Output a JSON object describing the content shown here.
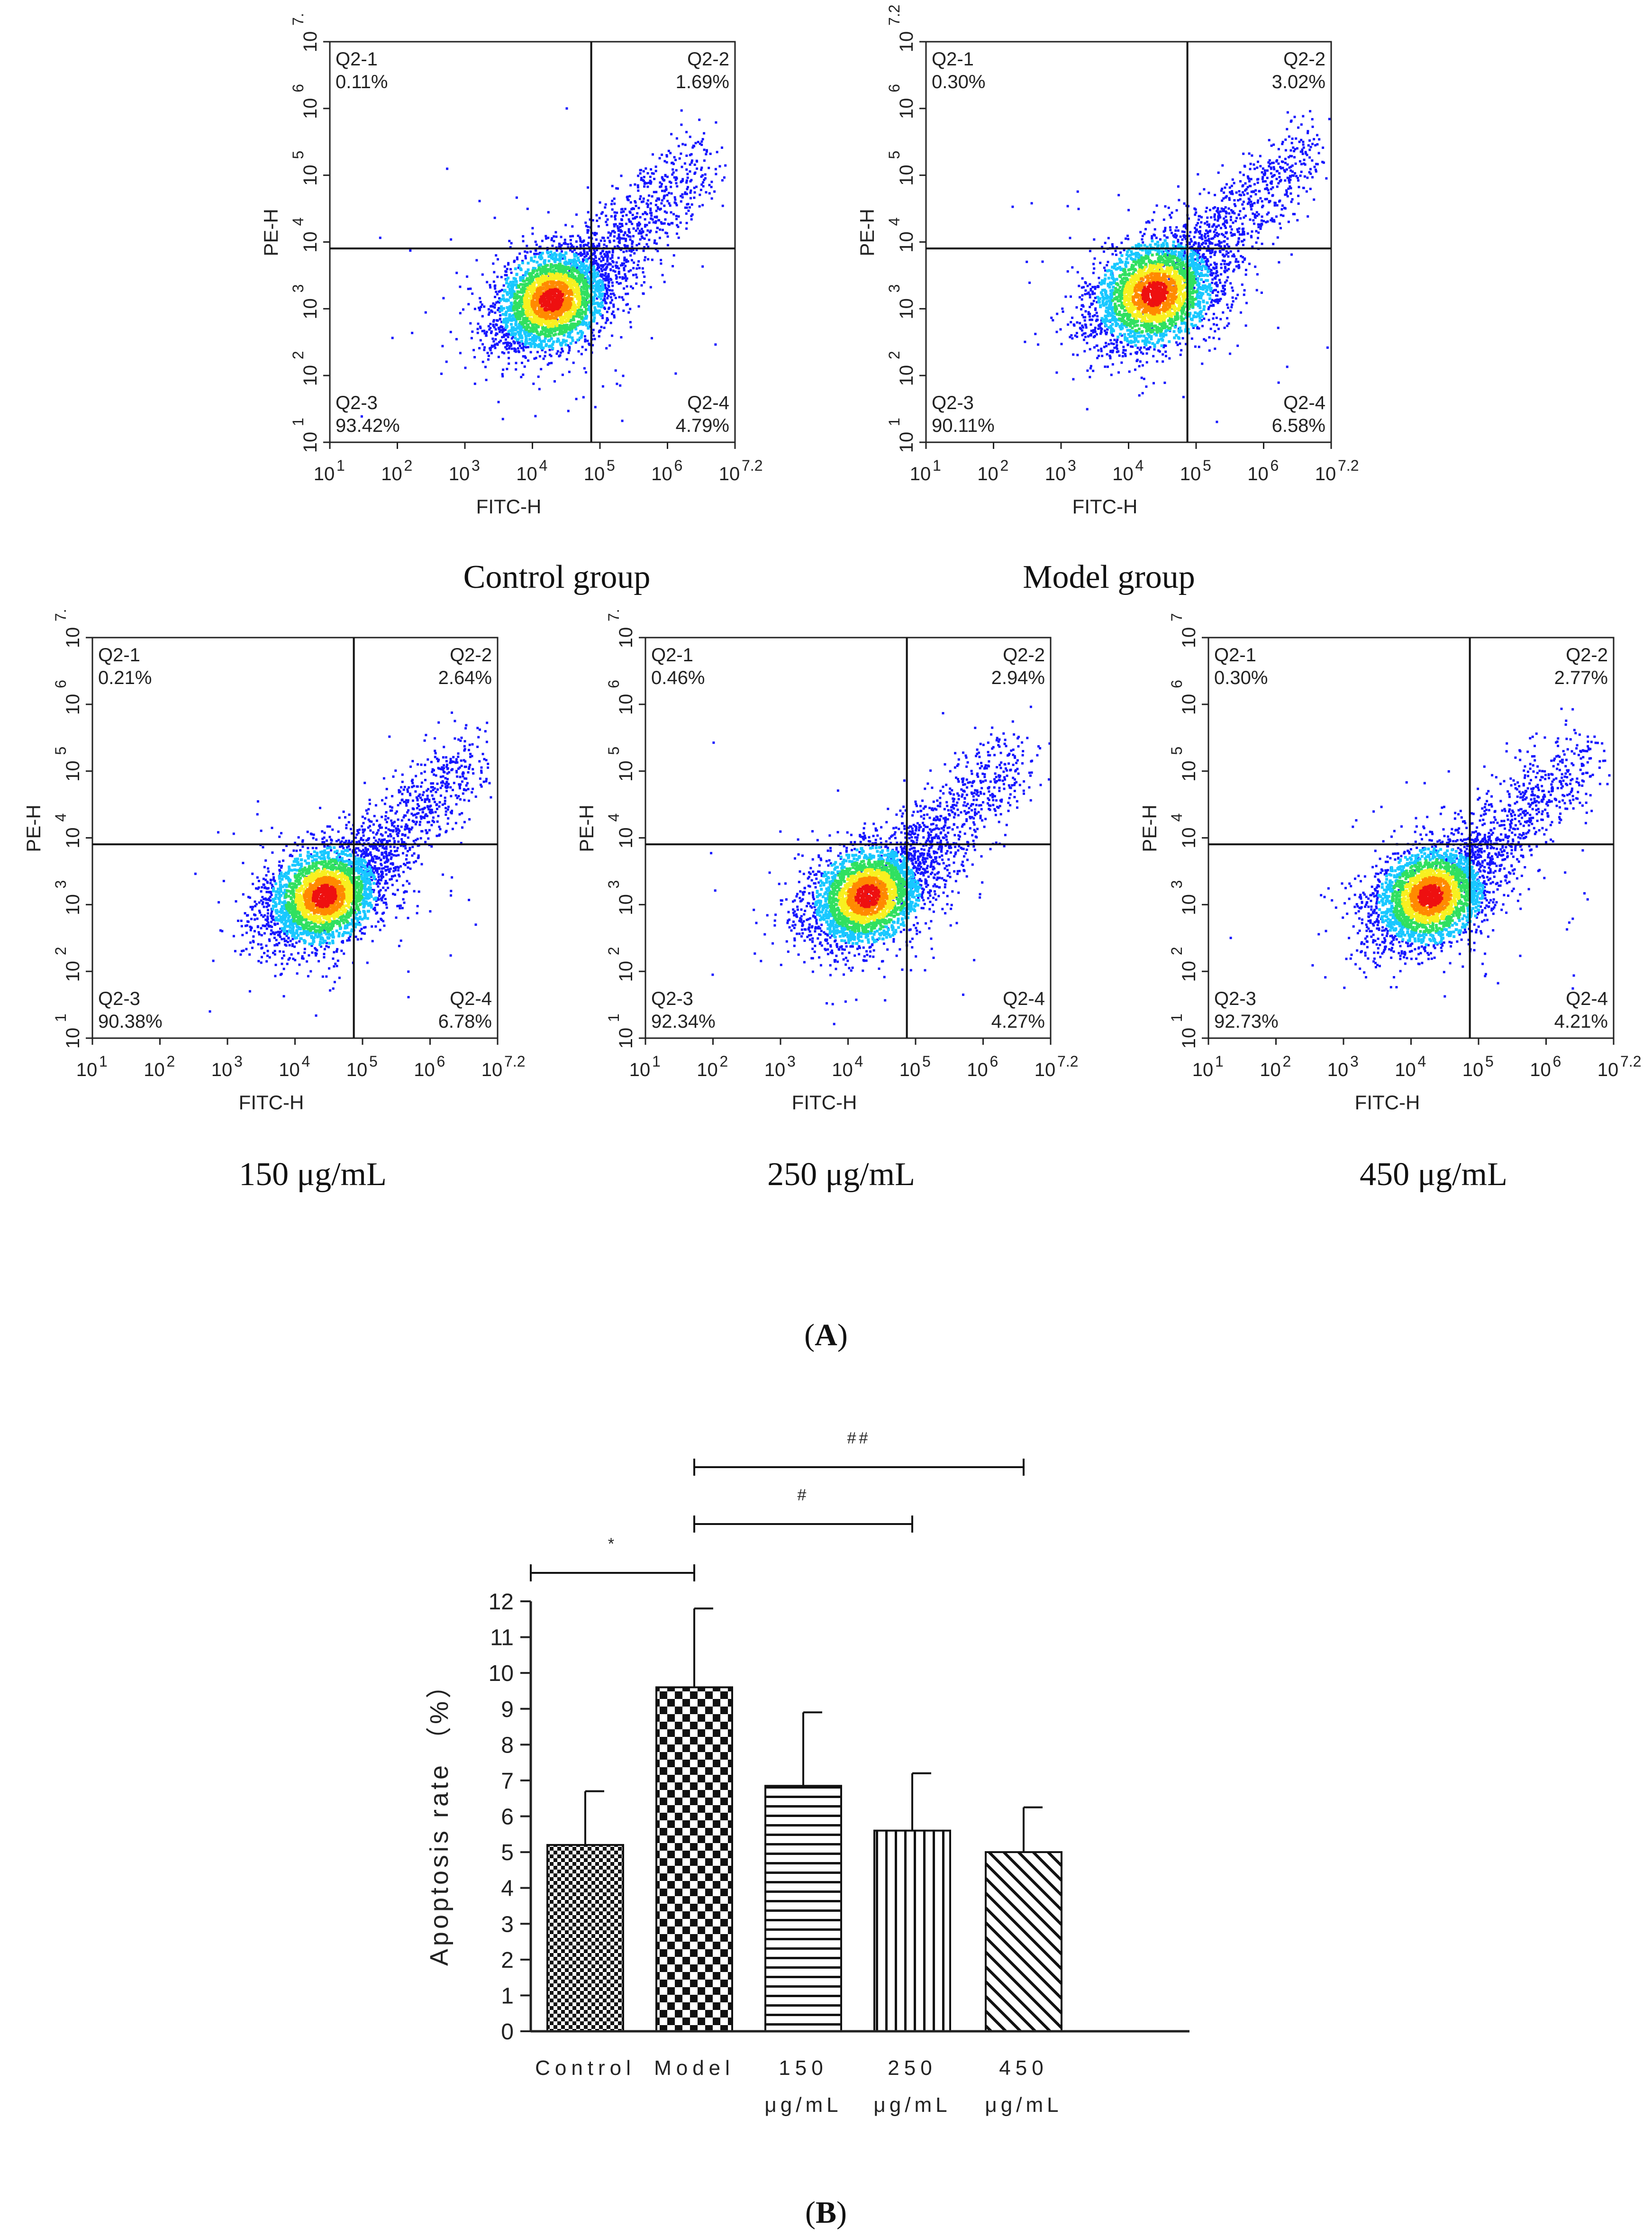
{
  "figure": {
    "panel_a_label_open": "(",
    "panel_a_label_letter": "A",
    "panel_a_label_close": ")",
    "panel_b_label_open": "(",
    "panel_b_label_letter": "B",
    "panel_b_label_close": ")"
  },
  "colors": {
    "dot_blue": "#1515ff",
    "dot_cyan": "#18c8ff",
    "dot_green": "#30e060",
    "dot_yellow": "#f8f020",
    "dot_orange": "#ff8a00",
    "dot_red": "#ee1010",
    "axis": "#222222"
  },
  "chart_data": [
    {
      "type": "scatter",
      "kind": "flow-cytometry",
      "caption": "Control group",
      "xlabel": "FITC-H",
      "ylabel": "PE-H",
      "xticks": [
        {
          "base": "10",
          "exp": "1"
        },
        {
          "base": "10",
          "exp": "2"
        },
        {
          "base": "10",
          "exp": "3"
        },
        {
          "base": "10",
          "exp": "4"
        },
        {
          "base": "10",
          "exp": "5"
        },
        {
          "base": "10",
          "exp": "6"
        },
        {
          "base": "10",
          "exp": "7.2"
        }
      ],
      "yticks": [
        {
          "base": "10",
          "exp": "1"
        },
        {
          "base": "10",
          "exp": "2"
        },
        {
          "base": "10",
          "exp": "3"
        },
        {
          "base": "10",
          "exp": "4"
        },
        {
          "base": "10",
          "exp": "5"
        },
        {
          "base": "10",
          "exp": "6"
        },
        {
          "base": "10",
          "exp": "7."
        }
      ],
      "xlim_log10": [
        1,
        7.2
      ],
      "ylim_log10": [
        1,
        7.2
      ],
      "gate_x_log10": 5.0,
      "gate_y_log10": 4.0,
      "cluster_center_log10": [
        4.4,
        3.2
      ],
      "spread": 0.55,
      "quadrants": [
        {
          "name": "Q2-1",
          "value": "0.11%"
        },
        {
          "name": "Q2-2",
          "value": "1.69%"
        },
        {
          "name": "Q2-3",
          "value": "93.42%"
        },
        {
          "name": "Q2-4",
          "value": "4.79%"
        }
      ]
    },
    {
      "type": "scatter",
      "kind": "flow-cytometry",
      "caption": "Model group",
      "xlabel": "FITC-H",
      "ylabel": "PE-H",
      "xticks": [
        {
          "base": "10",
          "exp": "1"
        },
        {
          "base": "10",
          "exp": "2"
        },
        {
          "base": "10",
          "exp": "3"
        },
        {
          "base": "10",
          "exp": "4"
        },
        {
          "base": "10",
          "exp": "5"
        },
        {
          "base": "10",
          "exp": "6"
        },
        {
          "base": "10",
          "exp": "7.2"
        }
      ],
      "yticks": [
        {
          "base": "10",
          "exp": "1"
        },
        {
          "base": "10",
          "exp": "2"
        },
        {
          "base": "10",
          "exp": "3"
        },
        {
          "base": "10",
          "exp": "4"
        },
        {
          "base": "10",
          "exp": "5"
        },
        {
          "base": "10",
          "exp": "6"
        },
        {
          "base": "10",
          "exp": "7.2"
        }
      ],
      "xlim_log10": [
        1,
        7.2
      ],
      "ylim_log10": [
        1,
        7.2
      ],
      "gate_x_log10": 5.0,
      "gate_y_log10": 4.0,
      "cluster_center_log10": [
        4.5,
        3.3
      ],
      "spread": 0.6,
      "quadrants": [
        {
          "name": "Q2-1",
          "value": "0.30%"
        },
        {
          "name": "Q2-2",
          "value": "3.02%"
        },
        {
          "name": "Q2-3",
          "value": "90.11%"
        },
        {
          "name": "Q2-4",
          "value": "6.58%"
        }
      ]
    },
    {
      "type": "scatter",
      "kind": "flow-cytometry",
      "caption": "150 μg/mL",
      "xlabel": "FITC-H",
      "ylabel": "PE-H",
      "xticks": [
        {
          "base": "10",
          "exp": "1"
        },
        {
          "base": "10",
          "exp": "2"
        },
        {
          "base": "10",
          "exp": "3"
        },
        {
          "base": "10",
          "exp": "4"
        },
        {
          "base": "10",
          "exp": "5"
        },
        {
          "base": "10",
          "exp": "6"
        },
        {
          "base": "10",
          "exp": "7.2"
        }
      ],
      "yticks": [
        {
          "base": "10",
          "exp": "1"
        },
        {
          "base": "10",
          "exp": "2"
        },
        {
          "base": "10",
          "exp": "3"
        },
        {
          "base": "10",
          "exp": "4"
        },
        {
          "base": "10",
          "exp": "5"
        },
        {
          "base": "10",
          "exp": "6"
        },
        {
          "base": "10",
          "exp": "7."
        }
      ],
      "xlim_log10": [
        1,
        7.2
      ],
      "ylim_log10": [
        1,
        7.2
      ],
      "gate_x_log10": 5.0,
      "gate_y_log10": 4.0,
      "cluster_center_log10": [
        4.55,
        3.2
      ],
      "spread": 0.55,
      "quadrants": [
        {
          "name": "Q2-1",
          "value": "0.21%"
        },
        {
          "name": "Q2-2",
          "value": "2.64%"
        },
        {
          "name": "Q2-3",
          "value": "90.38%"
        },
        {
          "name": "Q2-4",
          "value": "6.78%"
        }
      ]
    },
    {
      "type": "scatter",
      "kind": "flow-cytometry",
      "caption": "250 μg/mL",
      "xlabel": "FITC-H",
      "ylabel": "PE-H",
      "xticks": [
        {
          "base": "10",
          "exp": "1"
        },
        {
          "base": "10",
          "exp": "2"
        },
        {
          "base": "10",
          "exp": "3"
        },
        {
          "base": "10",
          "exp": "4"
        },
        {
          "base": "10",
          "exp": "5"
        },
        {
          "base": "10",
          "exp": "6"
        },
        {
          "base": "10",
          "exp": "7.2"
        }
      ],
      "yticks": [
        {
          "base": "10",
          "exp": "1"
        },
        {
          "base": "10",
          "exp": "2"
        },
        {
          "base": "10",
          "exp": "3"
        },
        {
          "base": "10",
          "exp": "4"
        },
        {
          "base": "10",
          "exp": "5"
        },
        {
          "base": "10",
          "exp": "6"
        },
        {
          "base": "10",
          "exp": "7."
        }
      ],
      "xlim_log10": [
        1,
        7.2
      ],
      "ylim_log10": [
        1,
        7.2
      ],
      "gate_x_log10": 5.0,
      "gate_y_log10": 4.0,
      "cluster_center_log10": [
        4.4,
        3.2
      ],
      "spread": 0.55,
      "quadrants": [
        {
          "name": "Q2-1",
          "value": "0.46%"
        },
        {
          "name": "Q2-2",
          "value": "2.94%"
        },
        {
          "name": "Q2-3",
          "value": "92.34%"
        },
        {
          "name": "Q2-4",
          "value": "4.27%"
        }
      ]
    },
    {
      "type": "scatter",
      "kind": "flow-cytometry",
      "caption": "450 μg/mL",
      "xlabel": "FITC-H",
      "ylabel": "PE-H",
      "xticks": [
        {
          "base": "10",
          "exp": "1"
        },
        {
          "base": "10",
          "exp": "2"
        },
        {
          "base": "10",
          "exp": "3"
        },
        {
          "base": "10",
          "exp": "4"
        },
        {
          "base": "10",
          "exp": "5"
        },
        {
          "base": "10",
          "exp": "6"
        },
        {
          "base": "10",
          "exp": "7.2"
        }
      ],
      "yticks": [
        {
          "base": "10",
          "exp": "1"
        },
        {
          "base": "10",
          "exp": "2"
        },
        {
          "base": "10",
          "exp": "3"
        },
        {
          "base": "10",
          "exp": "4"
        },
        {
          "base": "10",
          "exp": "5"
        },
        {
          "base": "10",
          "exp": "6"
        },
        {
          "base": "10",
          "exp": "7"
        }
      ],
      "xlim_log10": [
        1,
        7.2
      ],
      "ylim_log10": [
        1,
        7.2
      ],
      "gate_x_log10": 5.0,
      "gate_y_log10": 4.0,
      "cluster_center_log10": [
        4.4,
        3.2
      ],
      "spread": 0.55,
      "quadrants": [
        {
          "name": "Q2-1",
          "value": "0.30%"
        },
        {
          "name": "Q2-2",
          "value": "2.77%"
        },
        {
          "name": "Q2-3",
          "value": "92.73%"
        },
        {
          "name": "Q2-4",
          "value": "4.21%"
        }
      ]
    },
    {
      "type": "bar",
      "ylabel": "Apoptosis rate （%）",
      "ylim": [
        0,
        12
      ],
      "yticks": [
        "0",
        "1",
        "2",
        "3",
        "4",
        "5",
        "6",
        "7",
        "8",
        "9",
        "10",
        "11",
        "12"
      ],
      "categories": [
        {
          "line1": "Control",
          "line2": "",
          "value": 5.2,
          "error": 1.5,
          "pattern": "fine-checker"
        },
        {
          "line1": "Model",
          "line2": "",
          "value": 9.6,
          "error": 2.2,
          "pattern": "coarse-checker"
        },
        {
          "line1": "150",
          "line2": "μg/mL",
          "value": 6.85,
          "error": 2.05,
          "pattern": "horizontal-lines"
        },
        {
          "line1": "250",
          "line2": "μg/mL",
          "value": 5.6,
          "error": 1.6,
          "pattern": "vertical-lines"
        },
        {
          "line1": "450",
          "line2": "μg/mL",
          "value": 5.0,
          "error": 1.25,
          "pattern": "diagonal-lines"
        }
      ],
      "significance": [
        {
          "from": 0,
          "to": 1,
          "label": "*"
        },
        {
          "from": 1,
          "to": 3,
          "label": "#"
        },
        {
          "from": 1,
          "to": 4,
          "label": "##"
        }
      ]
    }
  ]
}
